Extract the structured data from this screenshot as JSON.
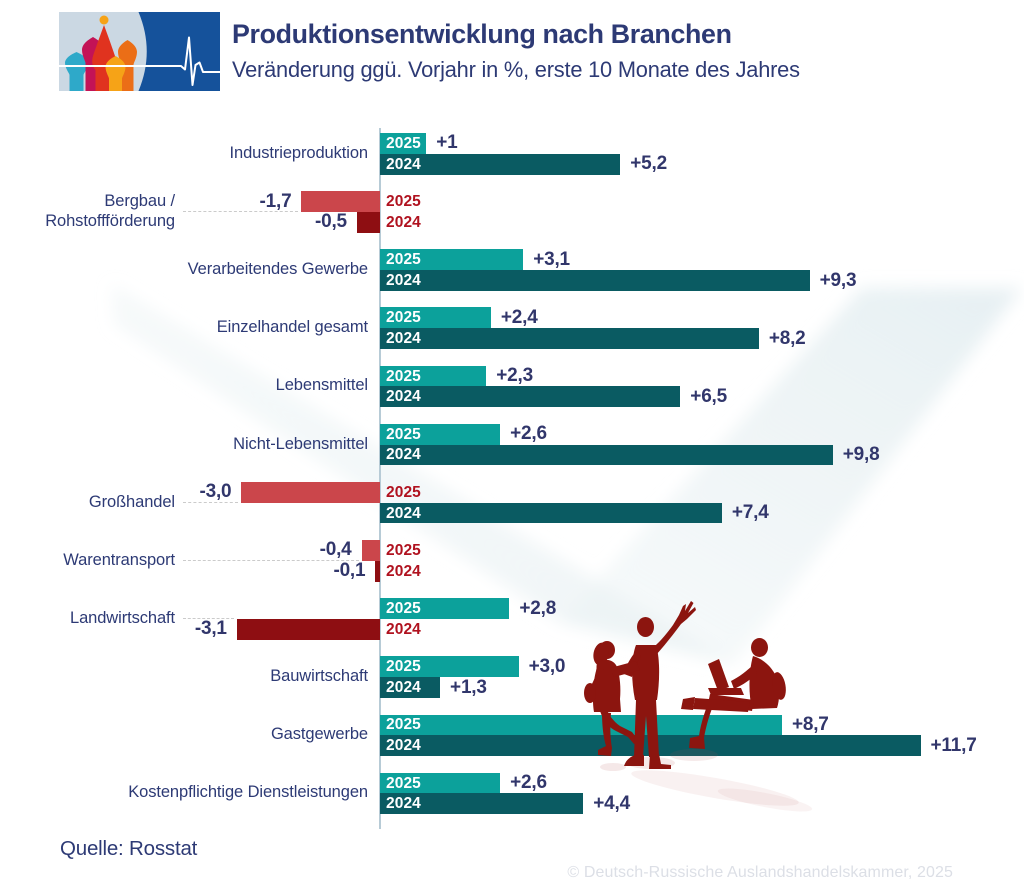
{
  "header": {
    "title": "Produktionsentwicklung nach Branchen",
    "subtitle": "Veränderung ggü. Vorjahr in %, erste 10 Monate des Jahres"
  },
  "logo": {
    "description": "Deutsch-Russische Auslandshandelskammer Logo",
    "icons": [
      "st-basils-cathedral",
      "ecg-pulse-line"
    ]
  },
  "footer": {
    "source": "Quelle: Rosstat",
    "copyright": "© Deutsch-Russische Auslandshandelskammer, 2025"
  },
  "colors": {
    "bar_2025_positive": "#0CA19B",
    "bar_2024_positive": "#0A5B62",
    "bar_2025_negative": "#CB464B",
    "bar_2024_negative": "#8E0E12",
    "year_label_positive": "#FFFFFF",
    "year_label_negative": "#B0121F",
    "value_label": "#31366B",
    "title_text": "#2D3A75",
    "axis": "#B7CBD6",
    "leader_dashes": "#CBCBCB",
    "watermark": "#E3EEF2",
    "silhouette": "#8C150F",
    "copyright_text": "#DCDFE6",
    "logo_blue": "#15529B",
    "logo_panel": "#CBD8E3"
  },
  "chart_data": {
    "type": "bar",
    "orientation": "horizontal",
    "title": "Produktionsentwicklung nach Branchen",
    "subtitle": "Veränderung ggü. Vorjahr in %, erste 10 Monate des Jahres",
    "unit": "percent change year-over-year",
    "xlim": [
      -3.5,
      12.5
    ],
    "legend_position": "in-bar year labels",
    "grid": false,
    "series": [
      "2025",
      "2024"
    ],
    "rows": [
      {
        "category": "Industrieproduktion",
        "values": [
          1.0,
          5.2
        ],
        "labels": [
          "+1",
          "+5,2"
        ]
      },
      {
        "category": "Bergbau / Rohstoffförderung",
        "category_lines": [
          "Bergbau /",
          "Rohstoffförderung"
        ],
        "values": [
          -1.7,
          -0.5
        ],
        "labels": [
          "-1,7",
          "-0,5"
        ],
        "indent_label": true
      },
      {
        "category": "Verarbeitendes Gewerbe",
        "values": [
          3.1,
          9.3
        ],
        "labels": [
          "+3,1",
          "+9,3"
        ]
      },
      {
        "category": "Einzelhandel gesamt",
        "values": [
          2.4,
          8.2
        ],
        "labels": [
          "+2,4",
          "+8,2"
        ]
      },
      {
        "category": "Lebensmittel",
        "values": [
          2.3,
          6.5
        ],
        "labels": [
          "+2,3",
          "+6,5"
        ]
      },
      {
        "category": "Nicht-Lebensmittel",
        "values": [
          2.6,
          9.8
        ],
        "labels": [
          "+2,6",
          "+9,8"
        ]
      },
      {
        "category": "Großhandel",
        "values": [
          -3.0,
          7.4
        ],
        "labels": [
          "-3,0",
          "+7,4"
        ],
        "indent_label": true
      },
      {
        "category": "Warentransport",
        "values": [
          -0.4,
          -0.1
        ],
        "labels": [
          "-0,4",
          "-0,1"
        ],
        "indent_label": true
      },
      {
        "category": "Landwirtschaft",
        "values": [
          2.8,
          -3.1
        ],
        "labels": [
          "+2,8",
          "-3,1"
        ],
        "indent_label": true
      },
      {
        "category": "Bauwirtschaft",
        "values": [
          3.0,
          1.3
        ],
        "labels": [
          "+3,0",
          "+1,3"
        ]
      },
      {
        "category": "Gastgewerbe",
        "values": [
          8.7,
          11.7
        ],
        "labels": [
          "+8,7",
          "+11,7"
        ]
      },
      {
        "category": "Kostenpflichtige Dienstleistungen",
        "values": [
          2.6,
          4.4
        ],
        "labels": [
          "+2,6",
          "+4,4"
        ]
      }
    ]
  }
}
